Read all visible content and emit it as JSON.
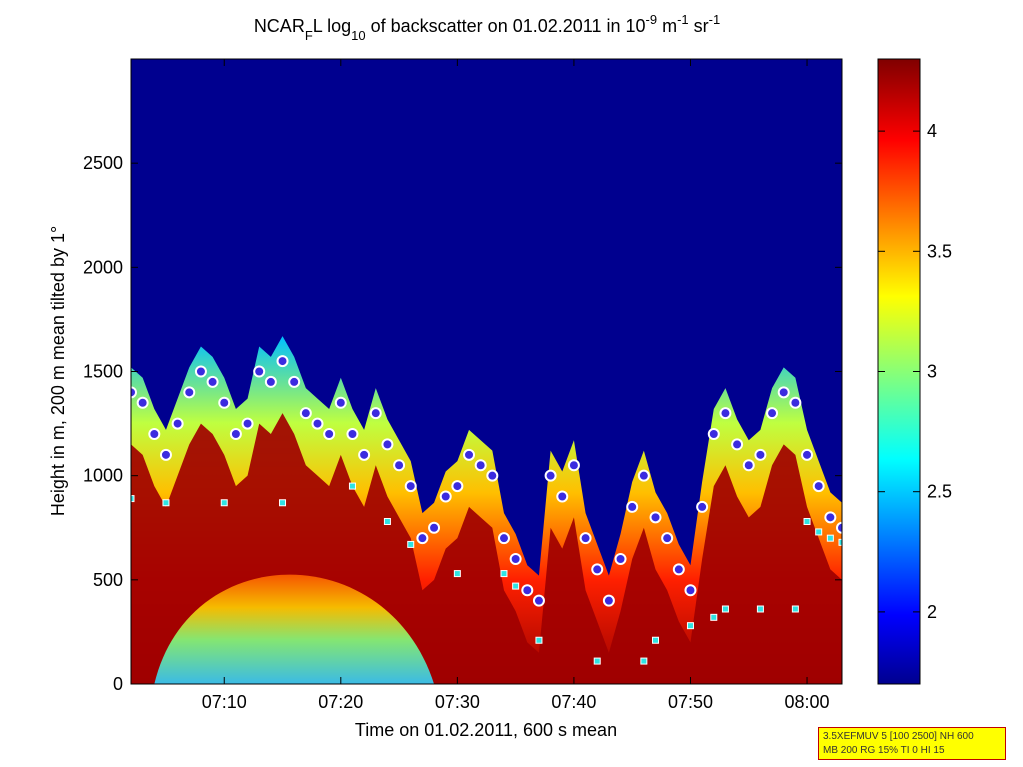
{
  "chart_data": {
    "type": "heatmap",
    "title_parts": {
      "base": "NCAR",
      "base_sub": "F",
      "suffix": "L log",
      "log_sub": "10",
      "middle": " of backscatter on 01.02.2011 in 10",
      "exp1": "-9",
      "unit1": " m",
      "exp2": "-1",
      "unit2": " sr",
      "exp3": "-1"
    },
    "xlabel": "Time on 01.02.2011, 600 s mean",
    "ylabel": "Height in m, 200 m mean tilted by 1°",
    "xlim": [
      "07:02",
      "08:03"
    ],
    "ylim": [
      0,
      3000
    ],
    "x_ticks": [
      "07:10",
      "07:20",
      "07:30",
      "07:40",
      "07:50",
      "08:00"
    ],
    "y_ticks": [
      0,
      500,
      1000,
      1500,
      2000,
      2500
    ],
    "colorbar": {
      "range": [
        1.7,
        4.3
      ],
      "ticks": [
        "2",
        "2.5",
        "3",
        "3.5",
        "4"
      ],
      "colormap": "jet"
    },
    "series": [
      {
        "marker": "circle",
        "x": [
          "07:02",
          "07:03",
          "07:04",
          "07:05",
          "07:06",
          "07:07",
          "07:08",
          "07:09",
          "07:10",
          "07:11",
          "07:12",
          "07:13",
          "07:14",
          "07:15",
          "07:16",
          "07:17",
          "07:18",
          "07:19",
          "07:20",
          "07:21",
          "07:22",
          "07:23",
          "07:24",
          "07:25",
          "07:26",
          "07:27",
          "07:28",
          "07:29",
          "07:30",
          "07:31",
          "07:32",
          "07:33",
          "07:34",
          "07:35",
          "07:36",
          "07:37",
          "07:38",
          "07:39",
          "07:40",
          "07:41",
          "07:42",
          "07:43",
          "07:44",
          "07:45",
          "07:46",
          "07:47",
          "07:48",
          "07:49",
          "07:50",
          "07:51",
          "07:52",
          "07:53",
          "07:54",
          "07:55",
          "07:56",
          "07:57",
          "07:58",
          "07:59",
          "08:00",
          "08:01",
          "08:02",
          "08:03"
        ],
        "y": [
          1400,
          1350,
          1200,
          1100,
          1250,
          1400,
          1500,
          1450,
          1350,
          1200,
          1250,
          1500,
          1450,
          1550,
          1450,
          1300,
          1250,
          1200,
          1350,
          1200,
          1100,
          1300,
          1150,
          1050,
          950,
          700,
          750,
          900,
          950,
          1100,
          1050,
          1000,
          700,
          600,
          450,
          400,
          1000,
          900,
          1050,
          700,
          550,
          400,
          600,
          850,
          1000,
          800,
          700,
          550,
          450,
          850,
          1200,
          1300,
          1150,
          1050,
          1100,
          1300,
          1400,
          1350,
          1100,
          950,
          800,
          750
        ]
      },
      {
        "marker": "square",
        "x": [
          "07:02",
          "07:05",
          "07:10",
          "07:15",
          "07:21",
          "07:24",
          "07:26",
          "07:30",
          "07:34",
          "07:35",
          "07:37",
          "07:42",
          "07:46",
          "07:47",
          "07:50",
          "07:52",
          "07:53",
          "07:56",
          "07:59",
          "08:00",
          "08:01",
          "08:02",
          "08:03"
        ],
        "y": [
          890,
          870,
          870,
          870,
          950,
          780,
          670,
          530,
          530,
          470,
          210,
          110,
          110,
          210,
          280,
          320,
          360,
          360,
          360,
          780,
          730,
          700,
          680
        ]
      }
    ]
  },
  "info_box": {
    "line1": "3.5XEFMUV 5 [100 2500] NH 600",
    "line2": "MB 200 RG 15% TI 0 HI 15",
    "background": "#ffff00",
    "border": "#c00000"
  },
  "colors": {
    "circle_marker_fill": "#3b2be0",
    "circle_marker_edge": "#ffffff",
    "square_marker_fill": "#2fe3e3",
    "square_marker_edge": "#ffffff"
  }
}
